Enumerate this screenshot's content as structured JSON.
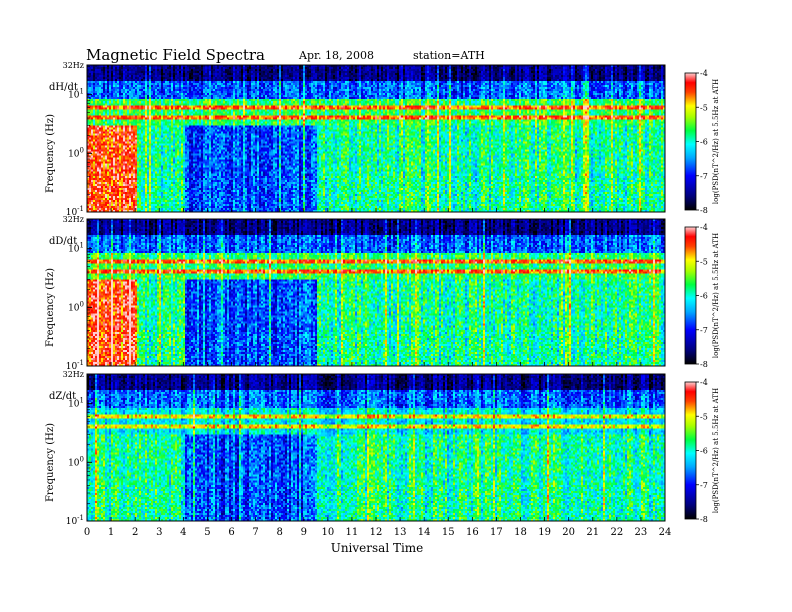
{
  "header": {
    "title": "Magnetic  Field  Spectra",
    "date": "Apr. 18, 2008",
    "station": "station=ATH"
  },
  "chart_data": [
    {
      "type": "heatmap",
      "component": "dH/dt",
      "xlabel": "",
      "ylabel": "Frequency  (Hz)",
      "xlim": [
        0,
        24
      ],
      "ylim": [
        0.1,
        32
      ],
      "log_y": true,
      "y_ticks": [
        "32Hz",
        "10",
        "10",
        "10"
      ],
      "y_tick_exponents": [
        "",
        "1",
        "0",
        "-1"
      ],
      "colorbar": {
        "label": "log(PSD(nT^2/Hz) at 5.5Hz at ATH",
        "range": [
          -8,
          -4
        ],
        "ticks": [
          "-4",
          "-5",
          "-6",
          "-7",
          "-8"
        ]
      }
    },
    {
      "type": "heatmap",
      "component": "dD/dt",
      "xlabel": "",
      "ylabel": "Frequency  (Hz)",
      "xlim": [
        0,
        24
      ],
      "ylim": [
        0.1,
        32
      ],
      "log_y": true,
      "y_ticks": [
        "32Hz",
        "10",
        "10",
        "10"
      ],
      "y_tick_exponents": [
        "",
        "1",
        "0",
        "-1"
      ],
      "colorbar": {
        "label": "log(PSD(nT^2/Hz) at 5.5Hz at ATH",
        "range": [
          -8,
          -4
        ],
        "ticks": [
          "-4",
          "-5",
          "-6",
          "-7",
          "-8"
        ]
      }
    },
    {
      "type": "heatmap",
      "component": "dZ/dt",
      "xlabel": "Universal Time",
      "ylabel": "Frequency  (Hz)",
      "xlim": [
        0,
        24
      ],
      "ylim": [
        0.1,
        32
      ],
      "log_y": true,
      "y_ticks": [
        "32Hz",
        "10",
        "10",
        "10"
      ],
      "y_tick_exponents": [
        "",
        "1",
        "0",
        "-1"
      ],
      "x_ticks": [
        "0",
        "1",
        "2",
        "3",
        "4",
        "5",
        "6",
        "7",
        "8",
        "9",
        "10",
        "11",
        "12",
        "13",
        "14",
        "15",
        "16",
        "17",
        "18",
        "19",
        "20",
        "21",
        "22",
        "23",
        "24"
      ],
      "colorbar": {
        "label": "log(PSD(nT^2/Hz) at 5.5Hz at ATH",
        "range": [
          -8,
          -4
        ],
        "ticks": [
          "-4",
          "-5",
          "-6",
          "-7",
          "-8"
        ]
      }
    }
  ]
}
